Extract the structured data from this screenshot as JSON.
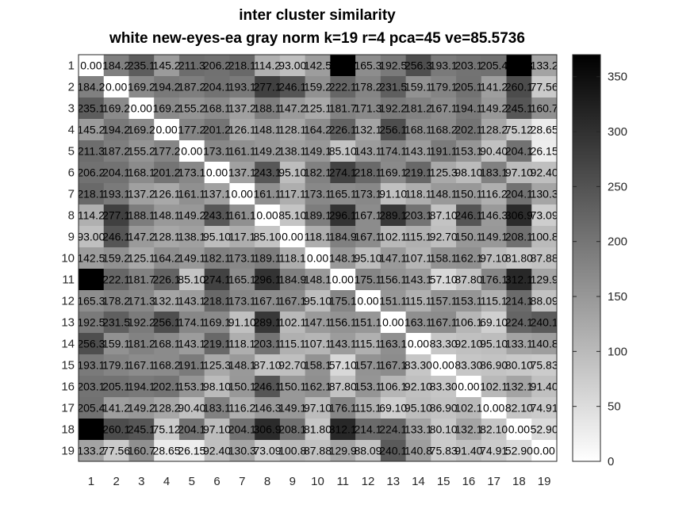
{
  "chart_data": {
    "type": "heatmap",
    "title": "inter cluster similarity",
    "subtitle": "white new-eyes-ea gray norm k=19 r=4 pca=45 ve=85.5736",
    "row_labels": [
      "1",
      "2",
      "3",
      "4",
      "5",
      "6",
      "7",
      "8",
      "9",
      "10",
      "11",
      "12",
      "13",
      "14",
      "15",
      "16",
      "17",
      "18",
      "19"
    ],
    "col_labels": [
      "1",
      "2",
      "3",
      "4",
      "5",
      "6",
      "7",
      "8",
      "9",
      "10",
      "11",
      "12",
      "13",
      "14",
      "15",
      "16",
      "17",
      "18",
      "19"
    ],
    "values": [
      [
        0.0,
        184.2,
        235.1,
        145.2,
        211.3,
        206.2,
        218.1,
        114.2,
        93.0,
        142.5,
        373.7,
        165.3,
        192.5,
        256.3,
        193.0,
        203.0,
        205.4,
        371.8,
        133.24
      ],
      [
        184.2,
        0.0,
        169.2,
        194.2,
        187.2,
        204.1,
        193.1,
        277.1,
        246.1,
        159.2,
        222.1,
        178.2,
        231.5,
        159.1,
        179.0,
        205.1,
        141.2,
        260.1,
        77.56
      ],
      [
        235.1,
        169.2,
        0.0,
        169.2,
        155.2,
        168.1,
        137.2,
        188.1,
        147.2,
        125.1,
        181.7,
        171.3,
        192.2,
        181.2,
        167.1,
        194.1,
        149.2,
        245.1,
        160.73
      ],
      [
        145.2,
        194.2,
        169.2,
        0.0,
        177.2,
        201.2,
        126.1,
        148.1,
        128.1,
        164.2,
        226.1,
        132.1,
        256.1,
        168.1,
        168.2,
        202.1,
        128.2,
        75.12,
        28.65
      ],
      [
        211.3,
        187.2,
        155.2,
        177.2,
        0.0,
        173.1,
        161.1,
        149.2,
        138.1,
        149.1,
        85.1,
        143.1,
        174.1,
        143.1,
        191.1,
        153.1,
        90.4,
        204.1,
        26.15
      ],
      [
        206.2,
        204.1,
        168.1,
        201.2,
        173.1,
        0.0,
        137.1,
        243.1,
        95.1,
        182.1,
        274.1,
        218.1,
        169.1,
        219.1,
        125.3,
        98.1,
        183.1,
        97.1,
        92.4
      ],
      [
        218.1,
        193.1,
        137.2,
        126.1,
        161.1,
        137.1,
        0.0,
        161.0,
        117.1,
        173.1,
        165.1,
        173.1,
        91.1,
        118.1,
        148.1,
        150.1,
        116.2,
        204.1,
        130.34
      ],
      [
        114.2,
        277.1,
        188.1,
        148.1,
        149.2,
        243.1,
        161.0,
        0.0,
        85.1,
        189.1,
        296.1,
        167.1,
        289.1,
        203.1,
        87.1,
        246.1,
        146.3,
        306.9,
        73.09
      ],
      [
        93.0,
        246.1,
        147.2,
        128.1,
        138.1,
        95.1,
        117.1,
        85.1,
        0.0,
        118.1,
        184.9,
        167.1,
        102.1,
        115.1,
        92.7,
        150.1,
        149.1,
        208.1,
        100.8
      ],
      [
        142.5,
        159.2,
        125.1,
        164.2,
        149.1,
        182.1,
        173.1,
        189.1,
        118.1,
        0.0,
        148.1,
        95.1,
        147.1,
        107.1,
        158.1,
        162.1,
        97.1,
        81.8,
        87.88
      ],
      [
        373.7,
        222.1,
        181.7,
        226.1,
        85.1,
        274.1,
        165.1,
        296.1,
        184.9,
        148.1,
        0.0,
        175.1,
        156.1,
        143.1,
        57.1,
        87.8,
        176.1,
        312.1,
        129.9
      ],
      [
        165.3,
        178.2,
        171.3,
        132.1,
        143.1,
        218.1,
        173.1,
        167.1,
        167.1,
        95.1,
        175.1,
        0.0,
        151.1,
        115.1,
        157.1,
        153.1,
        115.1,
        214.1,
        88.09
      ],
      [
        192.5,
        231.5,
        192.2,
        256.1,
        174.1,
        169.1,
        91.1,
        289.1,
        102.1,
        147.1,
        156.1,
        151.1,
        0.0,
        163.1,
        167.1,
        106.1,
        69.1,
        224.1,
        240.1
      ],
      [
        256.3,
        159.1,
        181.2,
        168.1,
        143.1,
        219.1,
        118.1,
        203.1,
        115.1,
        107.1,
        143.1,
        115.1,
        163.1,
        0.0,
        83.3,
        92.1,
        95.1,
        133.1,
        140.76
      ],
      [
        193.0,
        179.0,
        167.1,
        168.2,
        191.1,
        125.3,
        148.1,
        87.1,
        92.7,
        158.1,
        57.1,
        157.1,
        167.1,
        83.3,
        0.0,
        83.3,
        86.9,
        80.1,
        75.83
      ],
      [
        203.0,
        205.1,
        194.1,
        202.1,
        153.1,
        98.1,
        150.1,
        246.1,
        150.1,
        162.1,
        87.8,
        153.1,
        106.1,
        92.1,
        83.3,
        0.0,
        102.1,
        132.1,
        91.4
      ],
      [
        205.4,
        141.2,
        149.2,
        128.2,
        90.4,
        183.1,
        116.2,
        146.3,
        149.1,
        97.1,
        176.1,
        115.1,
        69.1,
        95.1,
        86.9,
        102.1,
        0.0,
        82.1,
        74.91
      ],
      [
        371.8,
        260.1,
        245.1,
        75.12,
        204.1,
        97.1,
        204.1,
        306.9,
        208.1,
        81.8,
        312.1,
        214.1,
        224.1,
        133.1,
        80.1,
        132.1,
        82.1,
        0.0,
        52.9
      ],
      [
        133.24,
        77.56,
        160.73,
        28.65,
        26.15,
        92.4,
        130.34,
        73.09,
        100.8,
        87.88,
        129.9,
        88.09,
        240.1,
        140.76,
        75.83,
        91.4,
        74.91,
        52.9,
        0.0
      ]
    ],
    "colormap": "gray-reversed",
    "color_range": [
      0,
      370
    ],
    "colorbar_ticks": [
      0,
      50,
      100,
      150,
      200,
      250,
      300,
      350
    ],
    "cell_text_color": "#000000",
    "grid": false
  }
}
